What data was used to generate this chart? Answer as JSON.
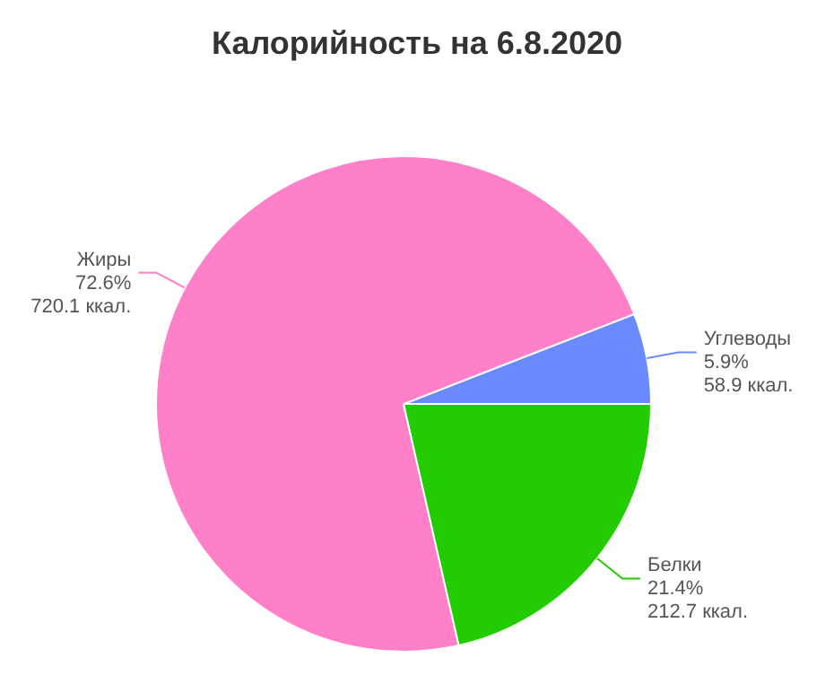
{
  "chart_data": {
    "type": "pie",
    "title": "Калорийность на 6.8.2020",
    "categories": [
      "Углеводы",
      "Жиры",
      "Белки"
    ],
    "values": [
      5.9,
      72.6,
      21.4
    ],
    "colors": [
      "#6b8afd",
      "#ff7fc8",
      "#22cc00"
    ],
    "value_labels": [
      "5.9%",
      "72.6%",
      "21.4%"
    ],
    "annotations": [
      "58.9 ккал.",
      "720.1 ккал.",
      "212.7 ккал."
    ],
    "legend": false
  }
}
